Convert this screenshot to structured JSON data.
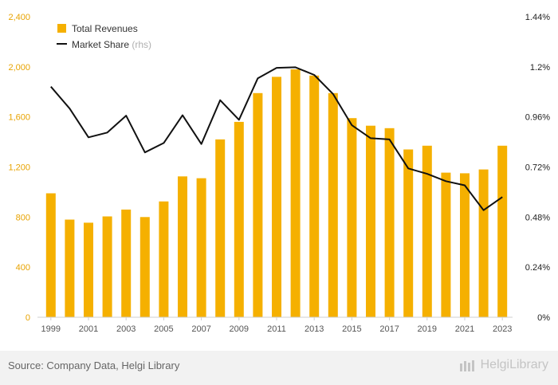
{
  "chart_data": {
    "type": "bar+line",
    "categories": [
      "1999",
      "2000",
      "2001",
      "2002",
      "2003",
      "2004",
      "2005",
      "2006",
      "2007",
      "2008",
      "2009",
      "2010",
      "2011",
      "2012",
      "2013",
      "2014",
      "2015",
      "2016",
      "2017",
      "2018",
      "2019",
      "2020",
      "2021",
      "2022",
      "2023"
    ],
    "x_tick_labels": [
      "1999",
      "2001",
      "2003",
      "2005",
      "2007",
      "2009",
      "2011",
      "2013",
      "2015",
      "2017",
      "2019",
      "2021",
      "2023"
    ],
    "series": [
      {
        "name": "Total Revenues",
        "axis": "left",
        "kind": "bar",
        "color": "#f5b000",
        "values": [
          990,
          780,
          755,
          805,
          860,
          800,
          925,
          1125,
          1110,
          1420,
          1560,
          1790,
          1920,
          1980,
          1930,
          1790,
          1590,
          1530,
          1510,
          1340,
          1370,
          1155,
          1150,
          1180,
          1370
        ]
      },
      {
        "name": "Market Share",
        "name_suffix": "(rhs)",
        "axis": "right",
        "kind": "line",
        "color": "#111111",
        "unit": "%",
        "values": [
          1.105,
          1.0,
          0.862,
          0.885,
          0.966,
          0.79,
          0.835,
          0.968,
          0.83,
          1.04,
          0.946,
          1.145,
          1.195,
          1.198,
          1.161,
          1.07,
          0.92,
          0.858,
          0.852,
          0.713,
          0.687,
          0.652,
          0.632,
          0.513,
          0.576
        ]
      }
    ],
    "left_axis": {
      "min": 0,
      "max": 2400,
      "ticks": [
        "0",
        "400",
        "800",
        "1,200",
        "1,600",
        "2,000",
        "2,400"
      ]
    },
    "right_axis": {
      "min": 0,
      "max": 1.44,
      "ticks": [
        "0%",
        "0.24%",
        "0.48%",
        "0.72%",
        "0.96%",
        "1.2%",
        "1.44%"
      ]
    },
    "legend": {
      "position": "top-left"
    },
    "grid": false
  },
  "footer": {
    "source": "Source: Company Data, Helgi Library",
    "brand": "HelgiLibrary"
  },
  "colors": {
    "bar": "#f5b000",
    "line": "#111111",
    "left_ticks": "#e8a300"
  }
}
